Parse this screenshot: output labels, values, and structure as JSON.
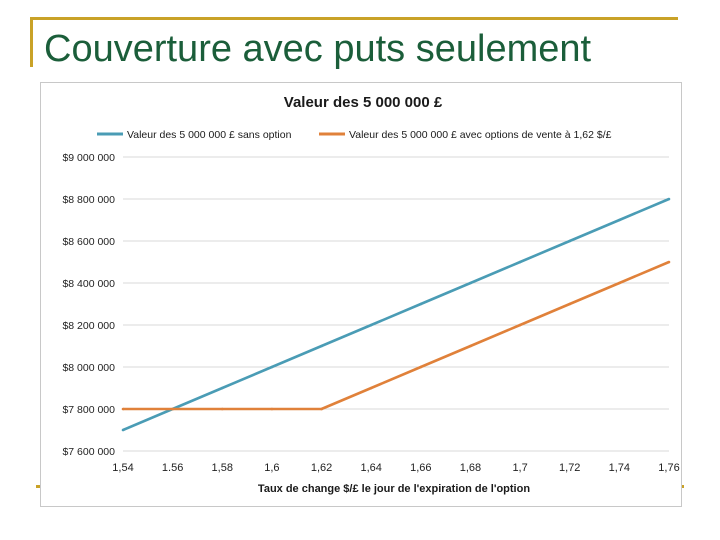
{
  "slide": {
    "title": "Couverture avec puts seulement"
  },
  "colors": {
    "accent_gold": "#c9a227",
    "title_green": "#1b5e3a",
    "series_blue": "#4a9cb5",
    "series_orange": "#e0813a",
    "gridline": "#d9d9d9"
  },
  "chart_data": {
    "type": "line",
    "title": "Valeur des 5 000 000 £",
    "xlabel": "Taux de change  $/£ le jour de l'expiration  de l'option",
    "ylabel": "",
    "x": [
      1.54,
      1.56,
      1.58,
      1.6,
      1.62,
      1.64,
      1.66,
      1.68,
      1.7,
      1.72,
      1.74,
      1.76
    ],
    "x_tick_labels": [
      "1,54",
      "1.56",
      "1,58",
      "1,6",
      "1,62",
      "1,64",
      "1,66",
      "1,68",
      "1,7",
      "1,72",
      "1,74",
      "1,76"
    ],
    "ylim": [
      7600000,
      9000000
    ],
    "y_ticks": [
      7600000,
      7800000,
      8000000,
      8200000,
      8400000,
      8600000,
      8800000,
      9000000
    ],
    "y_tick_labels": [
      "$7 600 000",
      "$7 800 000",
      "$8 000 000",
      "$8 200 000",
      "$8 400 000",
      "$8 600 000",
      "$8 800 000",
      "$9 000 000"
    ],
    "grid": true,
    "legend_position": "top",
    "series": [
      {
        "name": "Valeur des 5 000 000 £ sans option",
        "color": "#4a9cb5",
        "values": [
          7700000,
          7800000,
          7900000,
          8000000,
          8100000,
          8200000,
          8300000,
          8400000,
          8500000,
          8600000,
          8700000,
          8800000
        ]
      },
      {
        "name": "Valeur des 5 000 000 £ avec options de vente à 1,62 $/£",
        "color": "#e0813a",
        "values": [
          7800000,
          7800000,
          7800000,
          7800000,
          7800000,
          7900000,
          8000000,
          8100000,
          8200000,
          8300000,
          8400000,
          8500000
        ]
      }
    ]
  }
}
